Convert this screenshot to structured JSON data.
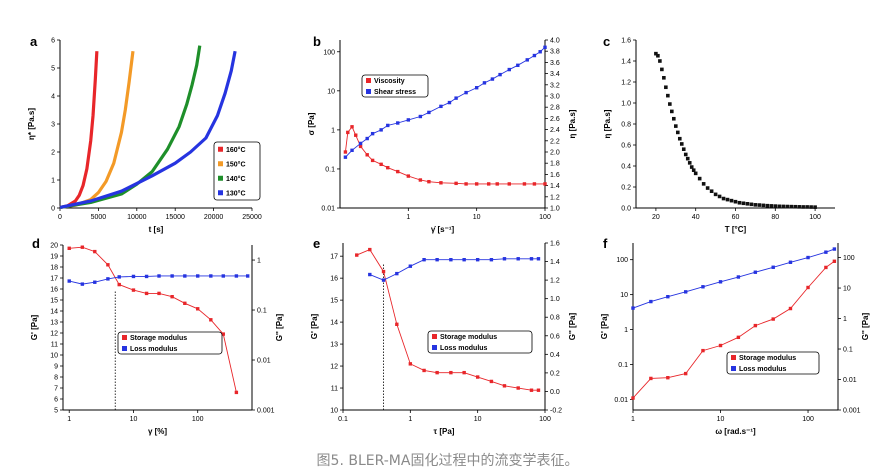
{
  "caption": "图5. BLER-MA固化过程中的流变学表征。",
  "colors": {
    "red": "#e8262a",
    "orange": "#f39a27",
    "green": "#1e8f2a",
    "blue": "#2634e0",
    "black": "#111111"
  },
  "chart_data": [
    {
      "id": "a",
      "letter": "a",
      "type": "line",
      "xlabel": "t [s]",
      "ylabel": "η* [Pa.s]",
      "xlim": [
        0,
        25000
      ],
      "ylim": [
        0,
        6
      ],
      "xticks": [
        0,
        5000,
        10000,
        15000,
        20000,
        25000
      ],
      "xtick_labels": [
        "0",
        "5000",
        "10000",
        "15000",
        "20000",
        "25000"
      ],
      "yticks": [
        0,
        1,
        2,
        3,
        4,
        5,
        6
      ],
      "yticks_labels": [
        "0",
        "1",
        "2",
        "3",
        "4",
        "5",
        "6"
      ],
      "legend": "middle-right",
      "series": [
        {
          "name": "160°C",
          "color": "#e8262a",
          "x": [
            0,
            1000,
            2000,
            2500,
            3000,
            3500,
            4000,
            4300,
            4600,
            4800
          ],
          "y": [
            0.02,
            0.08,
            0.25,
            0.45,
            0.8,
            1.4,
            2.4,
            3.3,
            4.6,
            5.6
          ]
        },
        {
          "name": "150°C",
          "color": "#f39a27",
          "x": [
            0,
            2000,
            4000,
            5000,
            6000,
            7000,
            8000,
            8500,
            9000,
            9500
          ],
          "y": [
            0.02,
            0.1,
            0.3,
            0.55,
            0.95,
            1.6,
            2.7,
            3.5,
            4.5,
            5.6
          ]
        },
        {
          "name": "140°C",
          "color": "#1e8f2a",
          "x": [
            0,
            4000,
            8000,
            10000,
            12000,
            14000,
            15500,
            16500,
            17200,
            17800,
            18200
          ],
          "y": [
            0.02,
            0.2,
            0.5,
            0.85,
            1.3,
            2.1,
            2.9,
            3.7,
            4.4,
            5.1,
            5.8
          ]
        },
        {
          "name": "130°C",
          "color": "#2634e0",
          "x": [
            0,
            4000,
            8000,
            12000,
            15000,
            17000,
            19000,
            20500,
            21500,
            22300,
            22800
          ],
          "y": [
            0.02,
            0.25,
            0.6,
            1.15,
            1.6,
            2.0,
            2.5,
            3.3,
            4.1,
            4.9,
            5.6
          ]
        }
      ]
    },
    {
      "id": "b",
      "letter": "b",
      "type": "scatter",
      "xlabel": "γ̇ [s⁻¹]",
      "ylabel": "σ [Pa]",
      "y2label": "η [Pa.s]",
      "xscale": "log",
      "yscale": "log",
      "xlim": [
        0.1,
        100
      ],
      "ylim": [
        0.01,
        200
      ],
      "y2lim": [
        1.0,
        4.0
      ],
      "xticks": [
        1,
        10,
        100
      ],
      "xtick_labels": [
        "1",
        "10",
        "100"
      ],
      "yticks": [
        0.01,
        0.1,
        1,
        10,
        100
      ],
      "ytick_labels": [
        "0.01",
        "0.1",
        "1",
        "10",
        "100"
      ],
      "y2ticks": [
        1.0,
        1.2,
        1.4,
        1.6,
        1.8,
        2.0,
        2.2,
        2.4,
        2.6,
        2.8,
        3.0,
        3.2,
        3.4,
        3.6,
        3.8,
        4.0
      ],
      "y2tick_labels": [
        "1.0",
        "1.2",
        "1.4",
        "1.6",
        "1.8",
        "2.0",
        "2.2",
        "2.4",
        "2.6",
        "2.8",
        "3.0",
        "3.2",
        "3.4",
        "3.6",
        "3.8",
        "4.0"
      ],
      "legend": "top-left",
      "series": [
        {
          "name": "Viscosity",
          "color": "#e8262a",
          "axis": "y2",
          "x": [
            0.12,
            0.13,
            0.15,
            0.17,
            0.2,
            0.25,
            0.3,
            0.4,
            0.5,
            0.7,
            1,
            1.5,
            2,
            3,
            5,
            7,
            10,
            15,
            20,
            30,
            50,
            70,
            100
          ],
          "y": [
            2.0,
            2.35,
            2.45,
            2.3,
            2.1,
            1.95,
            1.85,
            1.78,
            1.72,
            1.65,
            1.57,
            1.5,
            1.47,
            1.45,
            1.44,
            1.43,
            1.43,
            1.43,
            1.43,
            1.43,
            1.43,
            1.43,
            1.43
          ]
        },
        {
          "name": "Shear stress",
          "color": "#2634e0",
          "axis": "y",
          "x": [
            0.12,
            0.15,
            0.2,
            0.25,
            0.3,
            0.4,
            0.5,
            0.7,
            1,
            1.5,
            2,
            3,
            4,
            5,
            7,
            10,
            13,
            17,
            22,
            30,
            40,
            55,
            70,
            85,
            100
          ],
          "y": [
            0.2,
            0.3,
            0.45,
            0.6,
            0.8,
            1.0,
            1.3,
            1.5,
            1.8,
            2.2,
            2.8,
            4,
            5,
            6.5,
            9,
            12,
            16,
            20,
            26,
            35,
            45,
            62,
            80,
            100,
            130
          ]
        }
      ]
    },
    {
      "id": "c",
      "letter": "c",
      "type": "scatter",
      "xlabel": "T [°C]",
      "ylabel": "η [Pa.s]",
      "xlim": [
        10,
        110
      ],
      "ylim": [
        0,
        1.6
      ],
      "xticks": [
        20,
        40,
        60,
        80,
        100
      ],
      "xtick_labels": [
        "20",
        "40",
        "60",
        "80",
        "100"
      ],
      "yticks": [
        0,
        0.2,
        0.4,
        0.6,
        0.8,
        1.0,
        1.2,
        1.4,
        1.6
      ],
      "ytick_labels": [
        "0.0",
        "0.2",
        "0.4",
        "0.6",
        "0.8",
        "1.0",
        "1.2",
        "1.4",
        "1.6"
      ],
      "series": [
        {
          "name": "",
          "color": "#111111",
          "x": [
            20,
            21,
            22,
            23,
            24,
            25,
            26,
            27,
            28,
            29,
            30,
            31,
            32,
            33,
            34,
            35,
            36,
            37,
            38,
            39,
            40,
            42,
            44,
            46,
            48,
            50,
            52,
            54,
            56,
            58,
            60,
            62,
            64,
            66,
            68,
            70,
            72,
            74,
            76,
            78,
            80,
            82,
            84,
            86,
            88,
            90,
            92,
            94,
            96,
            98,
            100
          ],
          "y": [
            1.47,
            1.45,
            1.4,
            1.32,
            1.24,
            1.15,
            1.07,
            0.99,
            0.92,
            0.85,
            0.78,
            0.72,
            0.66,
            0.61,
            0.56,
            0.51,
            0.47,
            0.43,
            0.39,
            0.36,
            0.33,
            0.28,
            0.23,
            0.19,
            0.16,
            0.13,
            0.11,
            0.09,
            0.08,
            0.07,
            0.06,
            0.05,
            0.045,
            0.04,
            0.035,
            0.03,
            0.028,
            0.025,
            0.022,
            0.02,
            0.018,
            0.016,
            0.015,
            0.014,
            0.013,
            0.012,
            0.011,
            0.01,
            0.01,
            0.009,
            0.008
          ]
        }
      ]
    },
    {
      "id": "d",
      "letter": "d",
      "type": "line",
      "xlabel": "γ [%]",
      "ylabel": "G' [Pa]",
      "y2label": "G'' [Pa]",
      "xscale": "log",
      "y2scale": "log",
      "xlim": [
        0.8,
        700
      ],
      "ylim": [
        5,
        20
      ],
      "y2lim": [
        0.001,
        2
      ],
      "xticks": [
        1,
        10,
        100
      ],
      "xtick_labels": [
        "1",
        "10",
        "100"
      ],
      "yticks": [
        5,
        6,
        7,
        8,
        9,
        10,
        11,
        12,
        13,
        14,
        15,
        16,
        17,
        18,
        19,
        20
      ],
      "ytick_labels": [
        "5",
        "6",
        "7",
        "8",
        "9",
        "10",
        "11",
        "12",
        "13",
        "14",
        "15",
        "16",
        "17",
        "18",
        "19",
        "20"
      ],
      "y2ticks": [
        0.001,
        0.01,
        0.1,
        1
      ],
      "y2tick_labels": [
        "0.001",
        "0.01",
        "0.1",
        "1"
      ],
      "vline": 5.2,
      "legend": "center",
      "series": [
        {
          "name": "Storage modulus",
          "color": "#e8262a",
          "axis": "y",
          "x": [
            1,
            1.6,
            2.5,
            4,
            6,
            10,
            16,
            25,
            40,
            63,
            100,
            160,
            250,
            400
          ],
          "y": [
            19.7,
            19.8,
            19.4,
            18.2,
            16.4,
            15.9,
            15.6,
            15.6,
            15.3,
            14.7,
            14.2,
            13.2,
            11.9,
            6.6
          ]
        },
        {
          "name": "Loss modulus",
          "color": "#2634e0",
          "axis": "y2",
          "x": [
            1,
            1.6,
            2.5,
            4,
            6,
            10,
            16,
            25,
            40,
            63,
            100,
            160,
            250,
            400,
            600
          ],
          "y": [
            0.38,
            0.33,
            0.36,
            0.42,
            0.46,
            0.47,
            0.47,
            0.48,
            0.48,
            0.48,
            0.48,
            0.48,
            0.48,
            0.48,
            0.48
          ]
        }
      ]
    },
    {
      "id": "e",
      "letter": "e",
      "type": "line",
      "xlabel": "τ [Pa]",
      "ylabel": "G' [Pa]",
      "y2label": "G'' [Pa]",
      "xscale": "log",
      "xlim": [
        0.1,
        100
      ],
      "ylim": [
        10,
        17.6
      ],
      "y2lim": [
        -0.2,
        1.6
      ],
      "xticks": [
        0.1,
        1,
        10,
        100
      ],
      "xtick_labels": [
        "0.1",
        "1",
        "10",
        "100"
      ],
      "yticks": [
        10,
        11,
        12,
        13,
        14,
        15,
        16,
        17
      ],
      "ytick_labels": [
        "10",
        "11",
        "12",
        "13",
        "14",
        "15",
        "16",
        "17"
      ],
      "y2ticks": [
        -0.2,
        0,
        0.2,
        0.4,
        0.6,
        0.8,
        1.0,
        1.2,
        1.4,
        1.6
      ],
      "y2tick_labels": [
        "-0.2",
        "0.0",
        "0.2",
        "0.4",
        "0.6",
        "0.8",
        "1.0",
        "1.2",
        "1.4",
        "1.6"
      ],
      "vline": 0.4,
      "legend": "bottom-right",
      "series": [
        {
          "name": "Storage modulus",
          "color": "#e8262a",
          "axis": "y",
          "x": [
            0.16,
            0.25,
            0.4,
            0.63,
            1,
            1.6,
            2.5,
            4,
            6.3,
            10,
            16,
            25,
            40,
            63,
            80
          ],
          "y": [
            17.05,
            17.3,
            16.3,
            13.9,
            12.1,
            11.8,
            11.7,
            11.7,
            11.7,
            11.5,
            11.3,
            11.1,
            11.0,
            10.9,
            10.9
          ]
        },
        {
          "name": "Loss modulus",
          "color": "#2634e0",
          "axis": "y2",
          "x": [
            0.25,
            0.4,
            0.63,
            1,
            1.6,
            2.5,
            4,
            6.3,
            10,
            16,
            25,
            40,
            63,
            80
          ],
          "y": [
            1.26,
            1.2,
            1.27,
            1.35,
            1.42,
            1.42,
            1.42,
            1.42,
            1.42,
            1.42,
            1.43,
            1.43,
            1.43,
            1.43
          ]
        }
      ]
    },
    {
      "id": "f",
      "letter": "f",
      "type": "line",
      "xlabel": "ω [rad.s⁻¹]",
      "ylabel": "G' [Pa]",
      "y2label": "G'' [Pa]",
      "xscale": "log",
      "yscale": "log",
      "y2scale": "log",
      "xlim": [
        1,
        220
      ],
      "ylim": [
        0.005,
        300
      ],
      "y2lim": [
        0.001,
        300
      ],
      "xticks": [
        1,
        10,
        100
      ],
      "xtick_labels": [
        "1",
        "10",
        "100"
      ],
      "yticks": [
        0.01,
        0.1,
        1,
        10,
        100
      ],
      "ytick_labels": [
        "0.01",
        "0.1",
        "1",
        "10",
        "100"
      ],
      "y2ticks": [
        0.001,
        0.01,
        0.1,
        1,
        10,
        100
      ],
      "y2tick_labels": [
        "0.001",
        "0.01",
        "0.1",
        "1",
        "10",
        "100"
      ],
      "legend": "bottom-right",
      "series": [
        {
          "name": "Storage modulus",
          "color": "#e8262a",
          "axis": "y",
          "x": [
            1,
            1.6,
            2.5,
            4,
            6.3,
            10,
            16,
            25,
            40,
            63,
            100,
            160,
            200
          ],
          "y": [
            0.011,
            0.04,
            0.042,
            0.055,
            0.25,
            0.35,
            0.6,
            1.3,
            2.0,
            4.0,
            16,
            60,
            90
          ]
        },
        {
          "name": "Loss modulus",
          "color": "#2634e0",
          "axis": "y2",
          "x": [
            1,
            1.6,
            2.5,
            4,
            6.3,
            10,
            16,
            25,
            40,
            63,
            100,
            160,
            200
          ],
          "y": [
            2.2,
            3.6,
            5.2,
            7.5,
            11,
            16,
            23,
            33,
            48,
            70,
            100,
            150,
            190
          ]
        }
      ]
    }
  ]
}
